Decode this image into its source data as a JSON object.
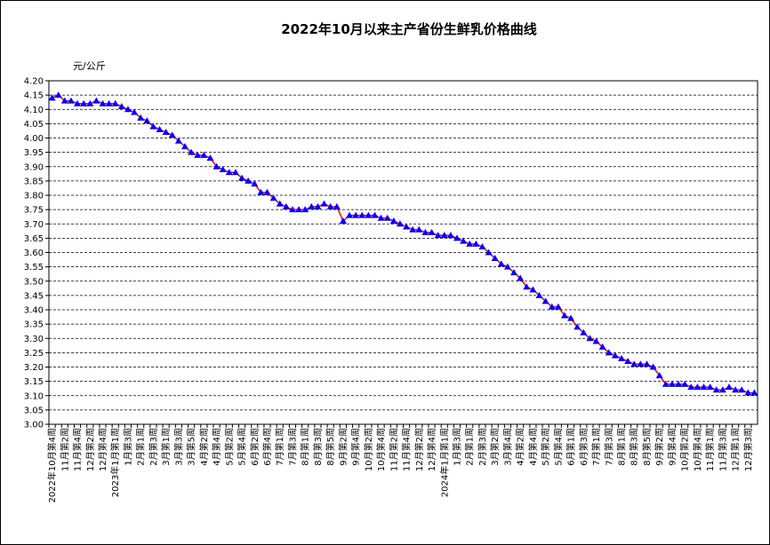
{
  "chart_data": {
    "type": "line",
    "title": "2022年10月以来主产省份生鲜乳价格曲线",
    "y_label": "元/公斤",
    "categories": [
      "2022年10月第4周",
      null,
      "11月第2周",
      null,
      "11月第4周",
      null,
      "12月第2周",
      null,
      "12月第4周",
      null,
      "2023年1月第1周",
      null,
      "1月第3周",
      null,
      "2月第1周",
      null,
      "2月第3周",
      null,
      "3月第1周",
      null,
      "3月第3周",
      null,
      "3月第5周",
      null,
      "4月第2周",
      null,
      "4月第4周",
      null,
      "5月第2周",
      null,
      "5月第4周",
      null,
      "6月第2周",
      null,
      "6月第4周",
      null,
      "7月第1周",
      null,
      "7月第3周",
      null,
      "8月第1周",
      null,
      "8月第3周",
      null,
      "8月第5周",
      null,
      "9月第2周",
      null,
      "9月第4周",
      null,
      "10月第2周",
      null,
      "10月第4周",
      null,
      "11月第2周",
      null,
      "11月第4周",
      null,
      "12月第2周",
      null,
      "12月第4周",
      null,
      "2024年1月第1周",
      null,
      "1月第3周",
      null,
      "2月第1周",
      null,
      "2月第3周",
      null,
      "3月第2周",
      null,
      "3月第4周",
      null,
      "4月第2周",
      null,
      "4月第4周",
      null,
      "5月第2周",
      null,
      "5月第4周",
      null,
      "6月第1周",
      null,
      "6月第3周",
      null,
      "7月第1周",
      null,
      "7月第3周",
      null,
      "8月第1周",
      null,
      "8月第3周",
      null,
      "8月第5周",
      null,
      "9月第2周",
      null,
      "9月第4周",
      null,
      "10月第2周",
      null,
      "10月第4周",
      null,
      "11月第1周",
      null,
      "11月第3周",
      null,
      "12月第1周",
      null,
      "12月第3周",
      null
    ],
    "series": [
      {
        "line_color": "#ff0000",
        "marker_color": "#0000ff",
        "values": [
          4.14,
          4.15,
          4.13,
          4.13,
          4.12,
          4.12,
          4.12,
          4.13,
          4.12,
          4.12,
          4.12,
          4.11,
          4.1,
          4.09,
          4.07,
          4.06,
          4.04,
          4.03,
          4.02,
          4.01,
          3.99,
          3.97,
          3.95,
          3.94,
          3.94,
          3.93,
          3.9,
          3.89,
          3.88,
          3.88,
          3.86,
          3.85,
          3.84,
          3.81,
          3.81,
          3.79,
          3.77,
          3.76,
          3.75,
          3.75,
          3.75,
          3.76,
          3.76,
          3.77,
          3.76,
          3.76,
          3.71,
          3.73,
          3.73,
          3.73,
          3.73,
          3.73,
          3.72,
          3.72,
          3.71,
          3.7,
          3.69,
          3.68,
          3.68,
          3.67,
          3.67,
          3.66,
          3.66,
          3.66,
          3.65,
          3.64,
          3.63,
          3.63,
          3.62,
          3.6,
          3.58,
          3.56,
          3.55,
          3.53,
          3.51,
          3.48,
          3.47,
          3.45,
          3.43,
          3.41,
          3.41,
          3.38,
          3.37,
          3.34,
          3.32,
          3.3,
          3.29,
          3.27,
          3.25,
          3.24,
          3.23,
          3.22,
          3.21,
          3.21,
          3.21,
          3.2,
          3.17,
          3.14,
          3.14,
          3.14,
          3.14,
          3.13,
          3.13,
          3.13,
          3.13,
          3.12,
          3.12,
          3.13,
          3.12,
          3.12,
          3.11,
          3.11
        ]
      }
    ],
    "ylim": [
      3.0,
      4.2
    ],
    "yticks": [
      {
        "value": 3.0,
        "label": "3.00"
      },
      3.05,
      {
        "value": 3.1,
        "label": "3.10"
      },
      3.15,
      {
        "value": 3.2,
        "label": "3.20"
      },
      3.25,
      {
        "value": 3.3,
        "label": "3.30"
      },
      3.35,
      {
        "value": 3.4,
        "label": "3.40"
      },
      3.45,
      {
        "value": 3.5,
        "label": "3.50"
      },
      3.55,
      {
        "value": 3.6,
        "label": "3.60"
      },
      3.65,
      {
        "value": 3.7,
        "label": "3.70"
      },
      3.75,
      {
        "value": 3.8,
        "label": "3.80"
      },
      3.85,
      {
        "value": 3.9,
        "label": "3.90"
      },
      3.95,
      {
        "value": 4.0,
        "label": "4.00"
      },
      4.05,
      {
        "value": 4.1,
        "label": "4.10"
      },
      4.15,
      {
        "value": 4.2,
        "label": "4.20"
      }
    ],
    "grid": true
  }
}
